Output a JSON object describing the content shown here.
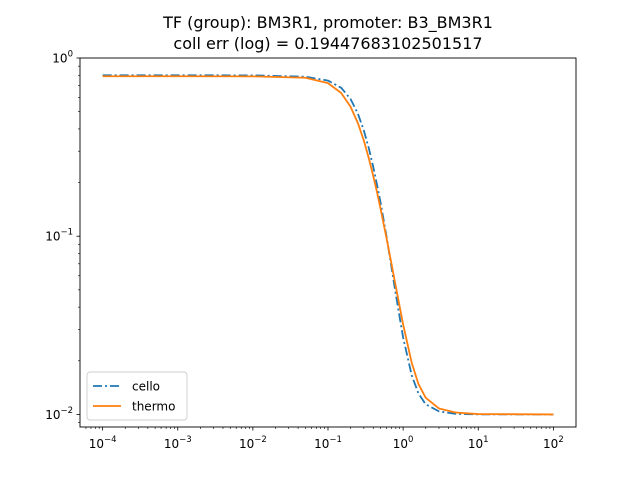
{
  "chart_data": {
    "type": "line",
    "title": "TF (group): BM3R1, promoter: B3_BM3R1",
    "subtitle": "coll err (log) = 0.19447683102501517",
    "xscale": "log",
    "yscale": "log",
    "xlim": [
      5e-05,
      200
    ],
    "ylim": [
      0.0085,
      1.0
    ],
    "xticks": [
      {
        "base": "10",
        "exp": "−4",
        "value": 0.0001
      },
      {
        "base": "10",
        "exp": "−3",
        "value": 0.001
      },
      {
        "base": "10",
        "exp": "−2",
        "value": 0.01
      },
      {
        "base": "10",
        "exp": "−1",
        "value": 0.1
      },
      {
        "base": "10",
        "exp": "0",
        "value": 1
      },
      {
        "base": "10",
        "exp": "1",
        "value": 10
      },
      {
        "base": "10",
        "exp": "2",
        "value": 100
      }
    ],
    "yticks": [
      {
        "base": "10",
        "exp": "−2",
        "value": 0.01
      },
      {
        "base": "10",
        "exp": "−1",
        "value": 0.1
      },
      {
        "base": "10",
        "exp": "0",
        "value": 1
      }
    ],
    "grid": false,
    "legend_position": "lower-left",
    "series": [
      {
        "name": "cello",
        "color": "#1f77b4",
        "style": "dashdot",
        "x": [
          0.0001,
          0.001,
          0.01,
          0.05,
          0.1,
          0.15,
          0.2,
          0.25,
          0.3,
          0.35,
          0.4,
          0.45,
          0.5,
          0.6,
          0.7,
          0.8,
          1,
          1.3,
          1.6,
          2,
          3,
          5,
          10,
          100
        ],
        "y": [
          0.8,
          0.8,
          0.799,
          0.785,
          0.747,
          0.68,
          0.588,
          0.487,
          0.392,
          0.311,
          0.245,
          0.194,
          0.155,
          0.1,
          0.067,
          0.047,
          0.027,
          0.0166,
          0.0131,
          0.0114,
          0.0104,
          0.01007,
          0.01001,
          0.01
        ]
      },
      {
        "name": "thermo",
        "color": "#ff7f0e",
        "style": "solid",
        "x": [
          0.0001,
          0.001,
          0.01,
          0.05,
          0.1,
          0.15,
          0.2,
          0.25,
          0.3,
          0.35,
          0.4,
          0.45,
          0.5,
          0.6,
          0.7,
          0.8,
          1,
          1.3,
          1.6,
          2,
          3,
          5,
          10,
          100
        ],
        "y": [
          0.79,
          0.79,
          0.789,
          0.775,
          0.723,
          0.636,
          0.532,
          0.431,
          0.344,
          0.273,
          0.218,
          0.176,
          0.143,
          0.098,
          0.07,
          0.052,
          0.032,
          0.0195,
          0.0148,
          0.0124,
          0.0108,
          0.01025,
          0.01005,
          0.01
        ]
      }
    ]
  }
}
